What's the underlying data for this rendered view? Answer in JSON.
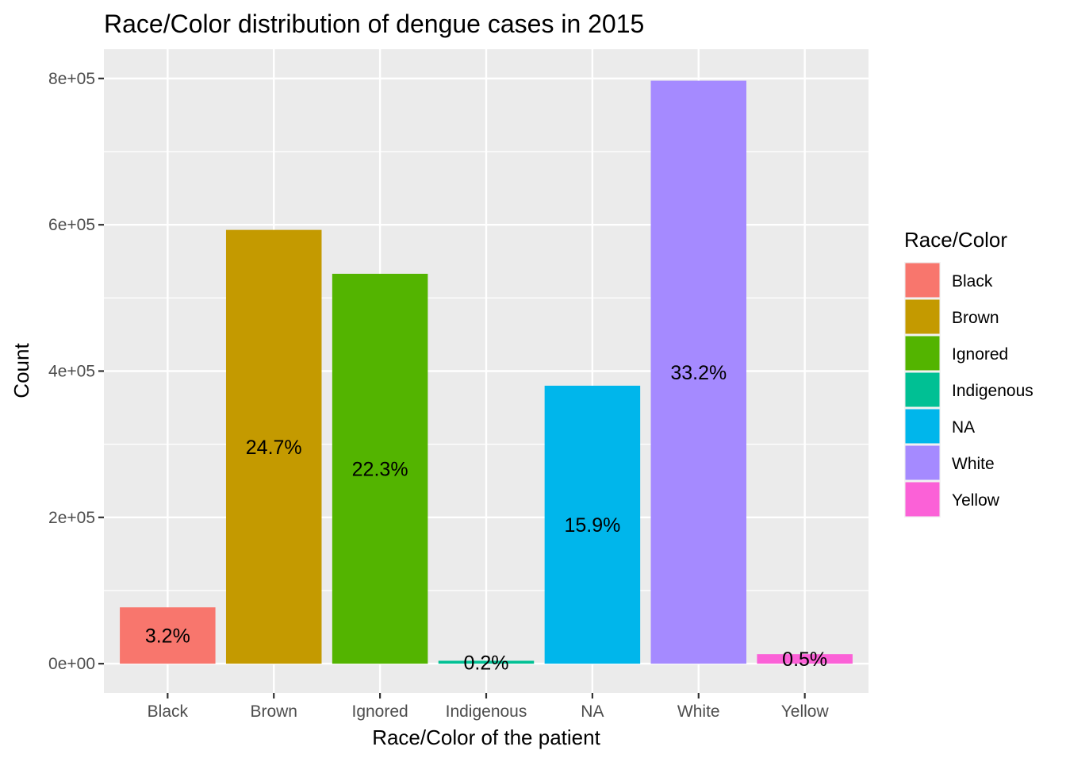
{
  "chart_data": {
    "type": "bar",
    "title": "Race/Color distribution of dengue cases in 2015",
    "xlabel": "Race/Color of the patient",
    "ylabel": "Count",
    "categories": [
      "Black",
      "Brown",
      "Ignored",
      "Indigenous",
      "NA",
      "White",
      "Yellow"
    ],
    "values": [
      77000,
      593000,
      533000,
      4000,
      380000,
      797000,
      13000
    ],
    "labels": [
      "3.2%",
      "24.7%",
      "22.3%",
      "0.2%",
      "15.9%",
      "33.2%",
      "0.5%"
    ],
    "colors": [
      "#F8766D",
      "#C49A00",
      "#53B400",
      "#00C094",
      "#00B6EB",
      "#A58AFF",
      "#FB61D7"
    ],
    "ylim": [
      -40000,
      840000
    ],
    "yticks": [
      0,
      200000,
      400000,
      600000,
      800000
    ],
    "ytick_labels": [
      "0e+00",
      "2e+05",
      "4e+05",
      "6e+05",
      "8e+05"
    ],
    "grid": true,
    "legend": {
      "title": "Race/Color",
      "position": "right",
      "entries": [
        "Black",
        "Brown",
        "Ignored",
        "Indigenous",
        "NA",
        "White",
        "Yellow"
      ]
    }
  }
}
